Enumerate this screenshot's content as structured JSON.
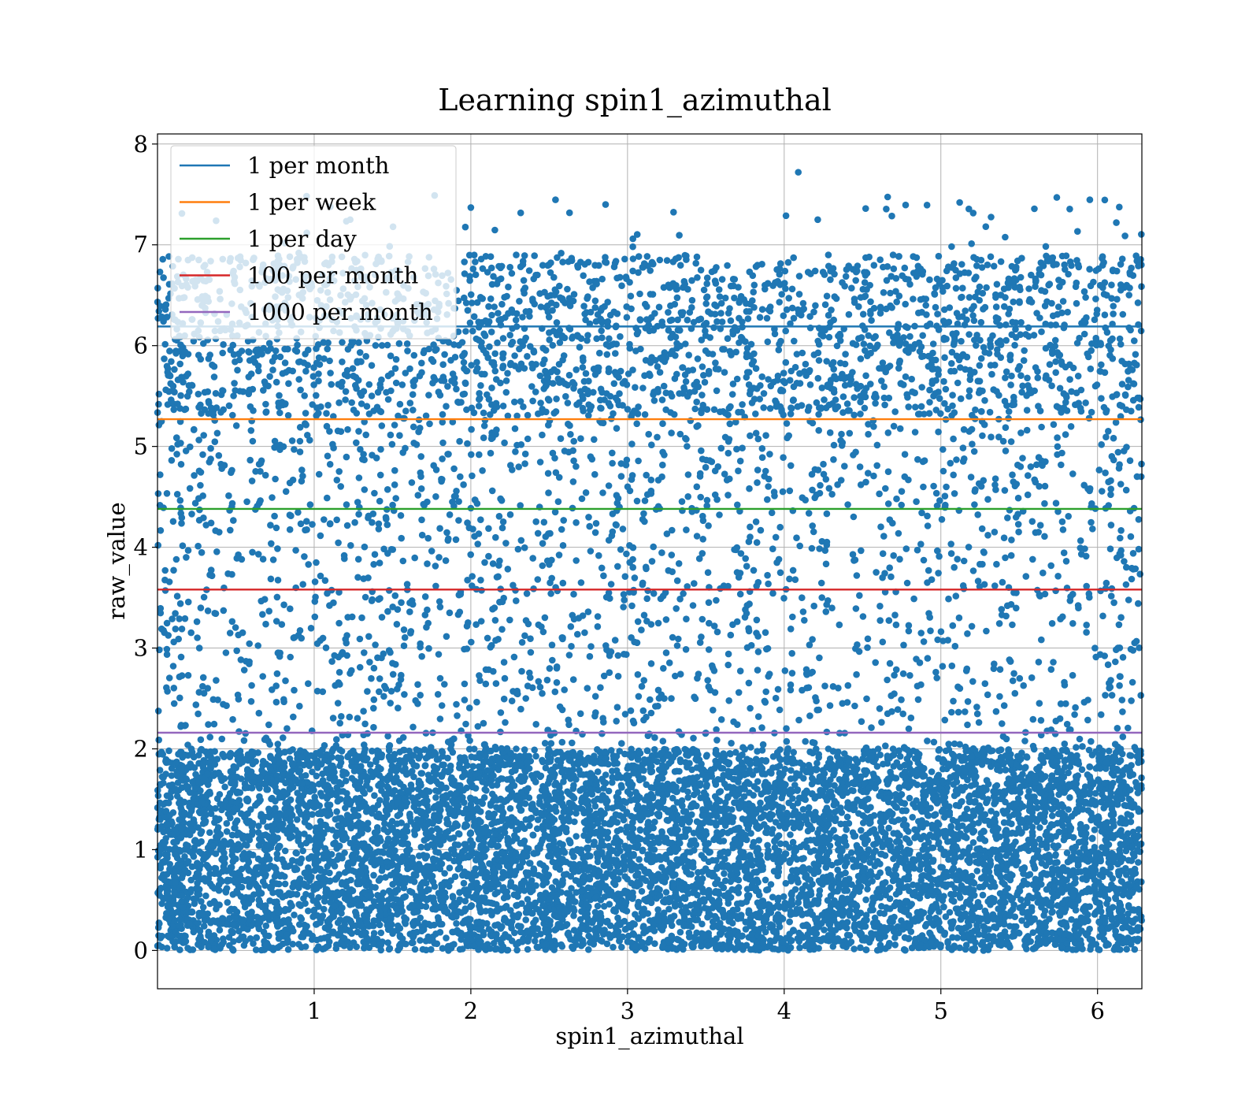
{
  "chart_data": {
    "type": "scatter",
    "title": "Learning spin1_azimuthal",
    "xlabel": "spin1_azimuthal",
    "ylabel": "raw_value",
    "xlim": [
      0,
      6.283
    ],
    "ylim": [
      -0.38,
      8.1
    ],
    "xticks": [
      1,
      2,
      3,
      4,
      5,
      6
    ],
    "yticks": [
      0,
      1,
      2,
      3,
      4,
      5,
      6,
      7,
      8
    ],
    "grid": true,
    "legend_position": "upper-left",
    "scatter_color": "#1f77b4",
    "scatter_bands": [
      {
        "y_range": [
          0.0,
          2.0
        ],
        "count": 9000
      },
      {
        "y_range": [
          2.0,
          5.3
        ],
        "count": 1800
      },
      {
        "y_range": [
          5.3,
          6.9
        ],
        "count": 2200
      },
      {
        "y_range": [
          6.9,
          7.5
        ],
        "count": 45
      }
    ],
    "outliers": [
      {
        "x": 4.09,
        "y": 7.72
      },
      {
        "x": 5.74,
        "y": 7.47
      },
      {
        "x": 5.12,
        "y": 7.42
      },
      {
        "x": 2.86,
        "y": 7.4
      },
      {
        "x": 2.0,
        "y": 7.37
      },
      {
        "x": 4.52,
        "y": 7.36
      },
      {
        "x": 1.23,
        "y": 7.25
      },
      {
        "x": 6.12,
        "y": 7.22
      }
    ],
    "series": [
      {
        "name": "1 per month",
        "y": 6.19,
        "color": "#1f77b4"
      },
      {
        "name": "1 per week",
        "y": 5.27,
        "color": "#ff7f0e"
      },
      {
        "name": "1 per day",
        "y": 4.38,
        "color": "#2ca02c"
      },
      {
        "name": "100 per month",
        "y": 3.58,
        "color": "#d62728"
      },
      {
        "name": "1000 per month",
        "y": 2.16,
        "color": "#9467bd"
      }
    ]
  }
}
